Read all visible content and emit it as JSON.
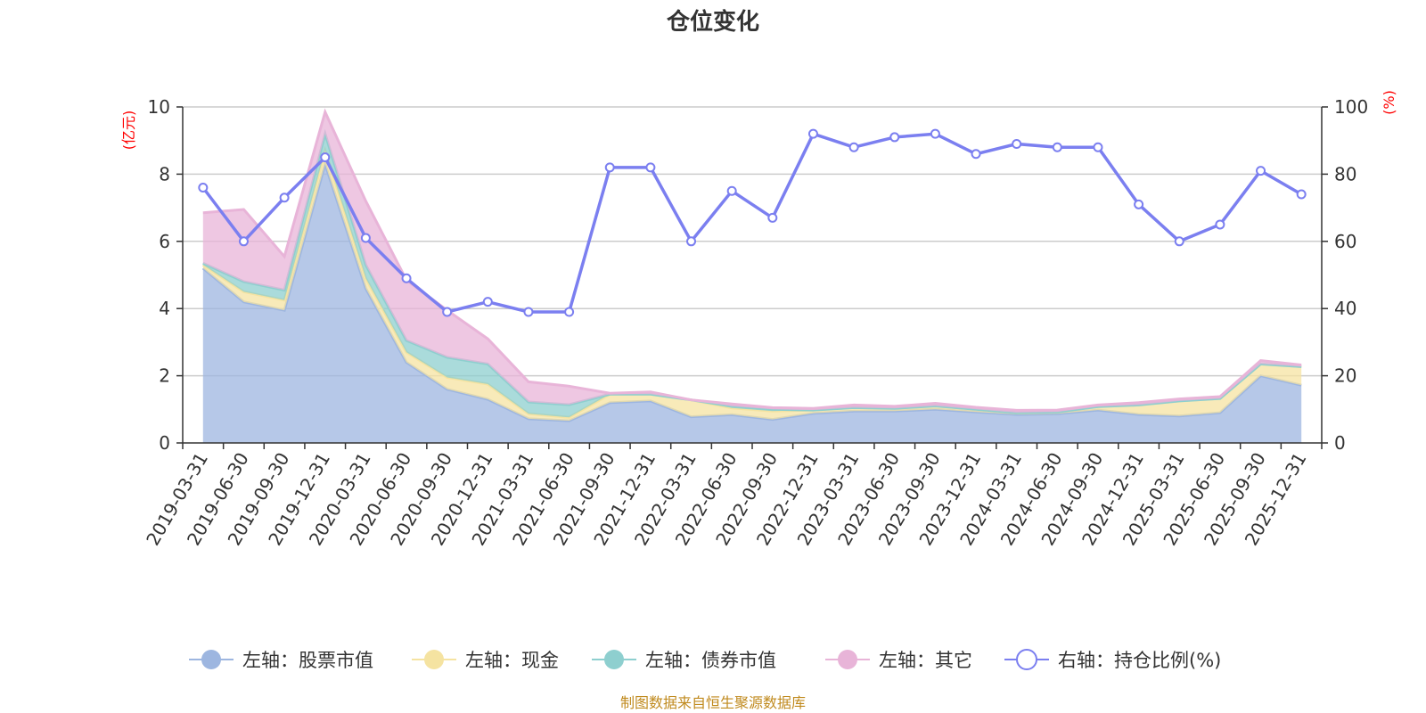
{
  "chart_data": {
    "type": "area",
    "title": "仓位变化",
    "left_axis": {
      "label": "(亿元)",
      "ylim": [
        0,
        10
      ],
      "ticks": [
        0,
        2,
        4,
        6,
        8,
        10
      ]
    },
    "right_axis": {
      "label": "(%)",
      "ylim": [
        0,
        100
      ],
      "ticks": [
        0,
        20,
        40,
        60,
        80,
        100
      ]
    },
    "x": [
      "2019-03-31",
      "2019-06-30",
      "2019-09-30",
      "2019-12-31",
      "2020-03-31",
      "2020-06-30",
      "2020-09-30",
      "2020-12-31",
      "2021-03-31",
      "2021-06-30",
      "2021-09-30",
      "2021-12-31",
      "2022-03-31",
      "2022-06-30",
      "2022-09-30",
      "2022-12-31",
      "2023-03-31",
      "2023-06-30",
      "2023-09-30",
      "2023-12-31",
      "2024-03-31",
      "2024-06-30",
      "2024-09-30",
      "2024-12-31",
      "2025-03-31",
      "2025-06-30",
      "2025-09-30",
      "2025-12-31"
    ],
    "stacked_series": [
      {
        "name": "左轴：股票市值",
        "color": "#9db6e0",
        "values": [
          5.2,
          4.2,
          3.95,
          8.3,
          4.6,
          2.4,
          1.6,
          1.3,
          0.72,
          0.66,
          1.2,
          1.25,
          0.78,
          0.84,
          0.7,
          0.88,
          0.95,
          0.95,
          1.0,
          0.92,
          0.85,
          0.87,
          0.98,
          0.85,
          0.8,
          0.9,
          2.0,
          1.72
        ]
      },
      {
        "name": "左轴：现金",
        "color": "#f5e3a1",
        "values": [
          0.1,
          0.3,
          0.3,
          0.4,
          0.3,
          0.3,
          0.35,
          0.45,
          0.15,
          0.1,
          0.25,
          0.2,
          0.5,
          0.2,
          0.25,
          0.1,
          0.1,
          0.08,
          0.1,
          0.08,
          0.05,
          0.05,
          0.1,
          0.28,
          0.45,
          0.42,
          0.35,
          0.55
        ]
      },
      {
        "name": "左轴：债券市值",
        "color": "#8ecfcf",
        "values": [
          0.05,
          0.3,
          0.3,
          0.5,
          0.4,
          0.35,
          0.6,
          0.6,
          0.35,
          0.38,
          0.0,
          0.0,
          0.0,
          0.05,
          0.05,
          0.0,
          0.0,
          0.0,
          0.0,
          0.0,
          0.0,
          0.0,
          0.0,
          0.0,
          0.0,
          0.0,
          0.0,
          0.0
        ]
      },
      {
        "name": "左轴：其它",
        "color": "#e8b4d8",
        "values": [
          1.5,
          2.15,
          1.0,
          0.65,
          1.9,
          1.8,
          1.4,
          0.75,
          0.6,
          0.55,
          0.03,
          0.07,
          0.0,
          0.07,
          0.05,
          0.05,
          0.08,
          0.06,
          0.08,
          0.06,
          0.07,
          0.06,
          0.05,
          0.07,
          0.06,
          0.06,
          0.1,
          0.05
        ]
      }
    ],
    "line_series": {
      "name": "右轴：持仓比例(%)",
      "color": "#7b7ff0",
      "values": [
        76,
        60,
        73,
        85,
        61,
        49,
        39,
        42,
        39,
        39,
        82,
        82,
        60,
        75,
        67,
        92,
        88,
        91,
        92,
        86,
        89,
        88,
        88,
        71,
        60,
        65,
        81,
        74
      ]
    },
    "legend_position": "bottom",
    "grid": true
  },
  "legend": [
    {
      "label": "左轴：股票市值",
      "color": "#9db6e0",
      "icon": "filled-circle-icon"
    },
    {
      "label": "左轴：现金",
      "color": "#f5e3a1",
      "icon": "filled-circle-icon"
    },
    {
      "label": "左轴：债券市值",
      "color": "#8ecfcf",
      "icon": "filled-circle-icon"
    },
    {
      "label": "左轴：其它",
      "color": "#e8b4d8",
      "icon": "filled-circle-icon"
    },
    {
      "label": "右轴：持仓比例(%)",
      "color": "#7b7ff0",
      "icon": "hollow-circle-icon"
    }
  ],
  "footer": "制图数据来自恒生聚源数据库"
}
